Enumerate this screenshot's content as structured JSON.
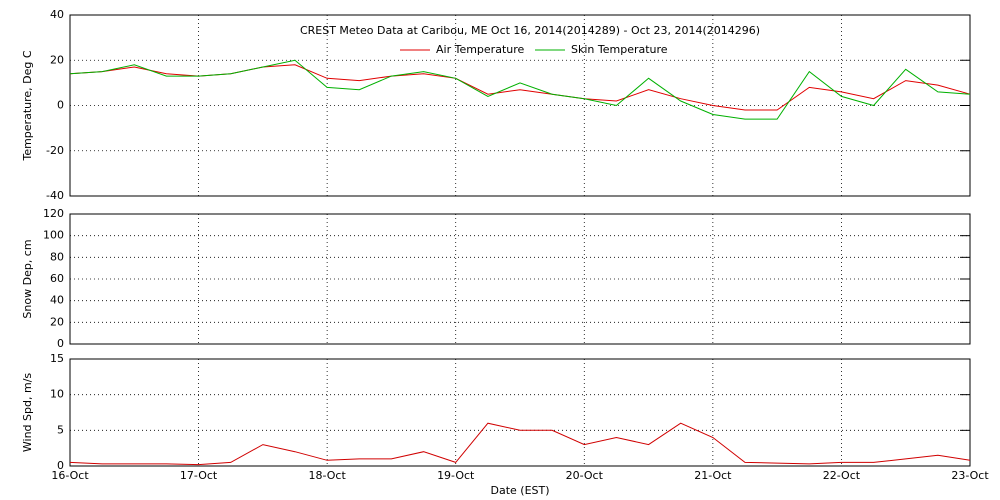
{
  "chart_data": [
    {
      "type": "line",
      "title": "CREST Meteo Data at Caribou, ME   Oct 16, 2014(2014289) - Oct 23, 2014(2014296)",
      "ylabel": "Temperature, Deg C",
      "x": [
        0,
        0.25,
        0.5,
        0.75,
        1,
        1.25,
        1.5,
        1.75,
        2,
        2.25,
        2.5,
        2.75,
        3,
        3.25,
        3.5,
        3.75,
        4,
        4.25,
        4.5,
        4.75,
        5,
        5.25,
        5.5,
        5.75,
        6,
        6.25,
        6.5,
        6.75,
        7
      ],
      "xlim": [
        0,
        7
      ],
      "xticks": [
        0,
        1,
        2,
        3,
        4,
        5,
        6,
        7
      ],
      "ylim": [
        -40,
        40
      ],
      "yticks": [
        -40,
        -20,
        0,
        20,
        40
      ],
      "grid": true,
      "series": [
        {
          "name": "Air Temperature",
          "color": "#e00000",
          "values": [
            14,
            15,
            17,
            14,
            13,
            14,
            17,
            18,
            12,
            11,
            13,
            14,
            12,
            5,
            7,
            5,
            3,
            2,
            7,
            3,
            0,
            -2,
            -2,
            8,
            6,
            3,
            11,
            9,
            5
          ]
        },
        {
          "name": "Skin Temperature",
          "color": "#00b000",
          "values": [
            14,
            15,
            18,
            13,
            13,
            14,
            17,
            20,
            8,
            7,
            13,
            15,
            12,
            4,
            10,
            5,
            3,
            0,
            12,
            2,
            -4,
            -6,
            -6,
            15,
            4,
            0,
            16,
            6,
            5
          ]
        }
      ]
    },
    {
      "type": "line",
      "ylabel": "Snow Dep, cm",
      "xlim": [
        0,
        7
      ],
      "xticks": [
        0,
        1,
        2,
        3,
        4,
        5,
        6,
        7
      ],
      "ylim": [
        0,
        120
      ],
      "yticks": [
        0,
        20,
        40,
        60,
        80,
        100,
        120
      ],
      "grid": true,
      "series": []
    },
    {
      "type": "line",
      "ylabel": "Wind Spd, m/s",
      "xlabel": "Date (EST)",
      "x": [
        0,
        0.25,
        0.5,
        0.75,
        1,
        1.25,
        1.5,
        1.75,
        2,
        2.25,
        2.5,
        2.75,
        3,
        3.25,
        3.5,
        3.75,
        4,
        4.25,
        4.5,
        4.75,
        5,
        5.25,
        5.5,
        5.75,
        6,
        6.25,
        6.5,
        6.75,
        7
      ],
      "xlim": [
        0,
        7
      ],
      "xticks": [
        {
          "value": 0,
          "label": "16-Oct"
        },
        {
          "value": 1,
          "label": "17-Oct"
        },
        {
          "value": 2,
          "label": "18-Oct"
        },
        {
          "value": 3,
          "label": "19-Oct"
        },
        {
          "value": 4,
          "label": "20-Oct"
        },
        {
          "value": 5,
          "label": "21-Oct"
        },
        {
          "value": 6,
          "label": "22-Oct"
        },
        {
          "value": 7,
          "label": "23-Oct"
        }
      ],
      "ylim": [
        0,
        15
      ],
      "yticks": [
        0,
        5,
        10,
        15
      ],
      "grid": true,
      "series": [
        {
          "name": "Wind Speed",
          "color": "#d00000",
          "values": [
            0.5,
            0.3,
            0.3,
            0.3,
            0.2,
            0.5,
            3,
            2,
            0.8,
            1,
            1,
            2,
            0.5,
            6,
            5,
            5,
            3,
            4,
            3,
            6,
            4,
            0.5,
            0.4,
            0.3,
            0.5,
            0.5,
            1,
            1.5,
            0.8
          ]
        }
      ]
    }
  ]
}
